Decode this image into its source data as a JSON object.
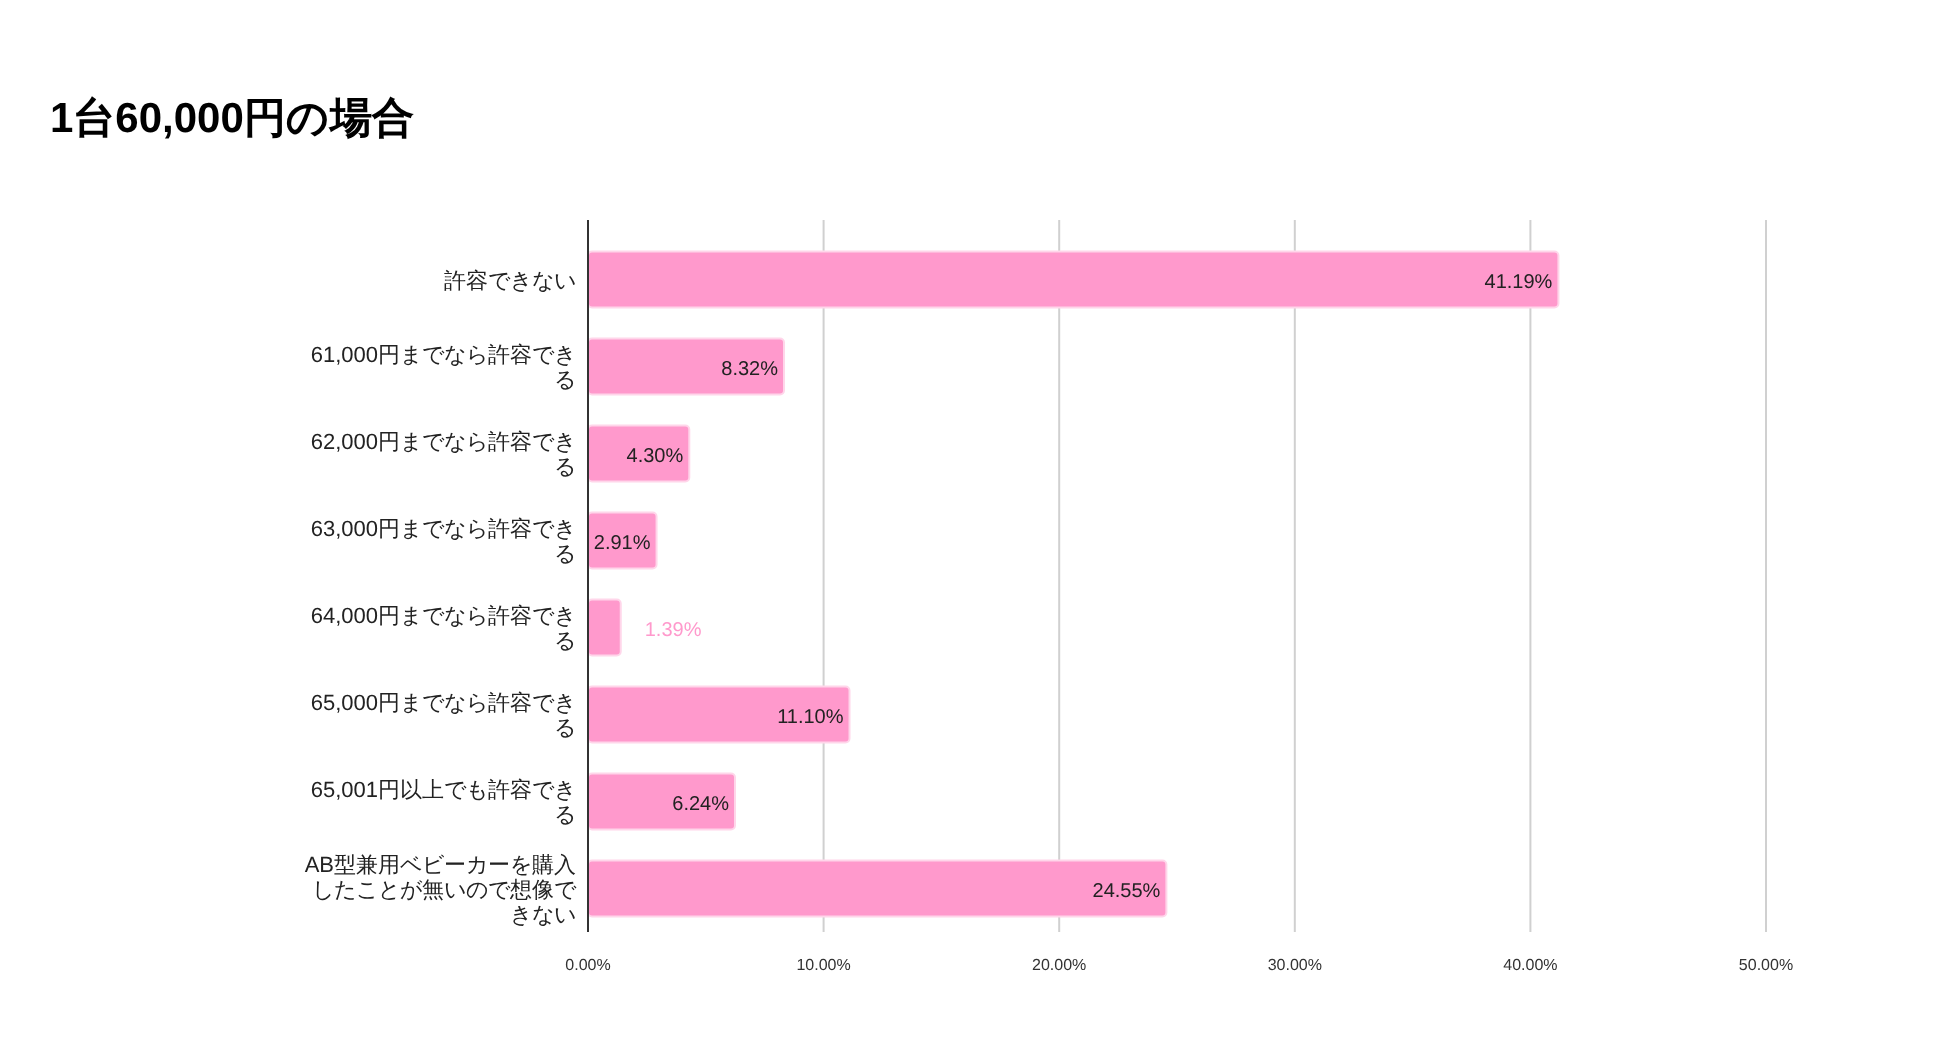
{
  "chart_data": {
    "type": "bar",
    "orientation": "horizontal",
    "title": "1台60,000円の場合",
    "categories": [
      "許容できない",
      "61,000円までなら許容できる",
      "62,000円までなら許容できる",
      "63,000円までなら許容できる",
      "64,000円までなら許容できる",
      "65,000円までなら許容できる",
      "65,001円以上でも許容できる",
      "AB型兼用ベビーカーを購入したことが無いので想像できない"
    ],
    "values": [
      41.19,
      8.32,
      4.3,
      2.91,
      1.39,
      11.1,
      6.24,
      24.55
    ],
    "value_labels": [
      "41.19%",
      "8.32%",
      "4.30%",
      "2.91%",
      "1.39%",
      "11.10%",
      "6.24%",
      "24.55%"
    ],
    "color": "#ff99cc",
    "xlim": [
      0,
      50
    ],
    "xticks": [
      {
        "value": 0,
        "label": "0.00%"
      },
      {
        "value": 10,
        "label": "10.00%"
      },
      {
        "value": 20,
        "label": "20.00%"
      },
      {
        "value": 30,
        "label": "30.00%"
      },
      {
        "value": 40,
        "label": "40.00%"
      },
      {
        "value": 50,
        "label": "50.00%"
      }
    ],
    "grid": "x"
  }
}
